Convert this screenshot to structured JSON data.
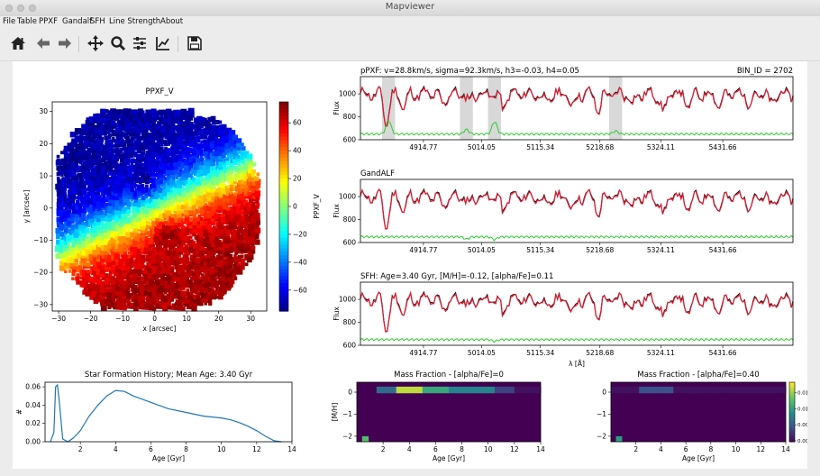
{
  "window": {
    "title": "Mapviewer"
  },
  "menu": [
    "File",
    "Table",
    "PPXF",
    "Gandalf",
    "SFH",
    "Line Strength",
    "About"
  ],
  "toolbar": {
    "buttons": [
      {
        "icon": "home-icon",
        "label": "Home"
      },
      {
        "icon": "back-arrow-icon",
        "label": "Back"
      },
      {
        "icon": "forward-arrow-icon",
        "label": "Forward"
      },
      {
        "icon": "pan-icon",
        "label": "Pan"
      },
      {
        "icon": "zoom-icon",
        "label": "Zoom"
      },
      {
        "icon": "subplots-icon",
        "label": "Configure subplots"
      },
      {
        "icon": "axes-edit-icon",
        "label": "Edit axes"
      },
      {
        "icon": "save-icon",
        "label": "Save"
      }
    ]
  },
  "chart_data": [
    {
      "type": "heatmap",
      "title": "PPXF_V",
      "xlabel": "x [arcsec]",
      "ylabel": "y [arcsec]",
      "xlim": [
        -32,
        35
      ],
      "ylim": [
        -32,
        33
      ],
      "x_ticks": [
        "−30",
        "−20",
        "−10",
        "0",
        "10",
        "20",
        "30"
      ],
      "y_ticks": [
        "30",
        "20",
        "10",
        "0",
        "−10",
        "−20",
        "−30"
      ],
      "colorbar_label": "PPXF_V",
      "colorbar_ticks": [
        "60",
        "40",
        "20",
        "0",
        "−20",
        "−40",
        "−60"
      ],
      "colorbar_range": [
        -75,
        75
      ]
    },
    {
      "type": "line",
      "title": "pPXF: v=28.8km/s, sigma=92.3km/s, h3=-0.03, h4=0.05",
      "annotation": "BIN_ID = 2702",
      "ylabel": "Flux",
      "ylim": [
        600,
        1150
      ],
      "y_ticks": [
        "1000",
        "800",
        "600"
      ],
      "x_ticks": [
        "4914.77",
        "5014.05",
        "5115.34",
        "5218.68",
        "5324.11",
        "5431.66"
      ],
      "series": [
        {
          "color": "#000000"
        },
        {
          "color": "#d62035"
        },
        {
          "color": "#2ecc2e"
        }
      ]
    },
    {
      "type": "line",
      "title": "GandALF",
      "ylabel": "Flux",
      "ylim": [
        600,
        1150
      ],
      "y_ticks": [
        "1000",
        "800",
        "600"
      ],
      "x_ticks": [
        "4914.77",
        "5014.05",
        "5115.34",
        "5218.68",
        "5324.11",
        "5431.66"
      ]
    },
    {
      "type": "line",
      "title": "SFH: Age=3.40 Gyr, [M/H]=-0.12, [alpha/Fe]=0.11",
      "ylabel": "Flux",
      "xlabel": "λ [Å]",
      "ylim": [
        600,
        1150
      ],
      "y_ticks": [
        "1000",
        "800",
        "600"
      ],
      "x_ticks": [
        "4914.77",
        "5014.05",
        "5115.34",
        "5218.68",
        "5324.11",
        "5431.66"
      ]
    },
    {
      "type": "line",
      "title": "Star Formation History; Mean Age: 3.40 Gyr",
      "xlabel": "Age [Gyr]",
      "ylabel": "#",
      "xlim": [
        0,
        14
      ],
      "ylim": [
        0,
        0.065
      ],
      "x_ticks": [
        "2",
        "4",
        "6",
        "8",
        "10",
        "12",
        "14"
      ],
      "y_ticks": [
        "0.06",
        "0.04",
        "0.02",
        "0.00"
      ],
      "x": [
        0.3,
        0.5,
        0.6,
        0.7,
        0.8,
        1.0,
        1.3,
        1.6,
        2.0,
        2.5,
        3.0,
        3.5,
        4.0,
        4.5,
        5.0,
        6.0,
        7.0,
        8.0,
        9.0,
        10.0,
        10.5,
        11.0,
        11.5,
        12.0,
        12.5,
        13.0,
        13.4
      ],
      "y": [
        0.0,
        0.01,
        0.06,
        0.062,
        0.045,
        0.003,
        0.0,
        0.004,
        0.012,
        0.028,
        0.04,
        0.05,
        0.056,
        0.055,
        0.05,
        0.043,
        0.036,
        0.032,
        0.028,
        0.026,
        0.024,
        0.021,
        0.017,
        0.012,
        0.006,
        0.001,
        0.0
      ]
    },
    {
      "type": "heatmap",
      "title": "Mass Fraction - [alpha/Fe]=0",
      "xlabel": "Age [Gyr]",
      "ylabel": "[M/H]",
      "x_ticks": [
        "2",
        "4",
        "6",
        "8",
        "10",
        "12",
        "14"
      ],
      "y_ticks": [
        "0",
        "−1",
        "−2"
      ]
    },
    {
      "type": "heatmap",
      "title": "Mass Fraction - [alpha/Fe]=0.40",
      "xlabel": "Age [Gyr]",
      "x_ticks": [
        "2",
        "4",
        "6",
        "8",
        "10",
        "12",
        "14"
      ],
      "y_ticks": [
        "0",
        "−1",
        "−2"
      ],
      "colorbar_ticks": [
        "0.015",
        "0.010",
        "0.005",
        "0.000"
      ]
    }
  ]
}
